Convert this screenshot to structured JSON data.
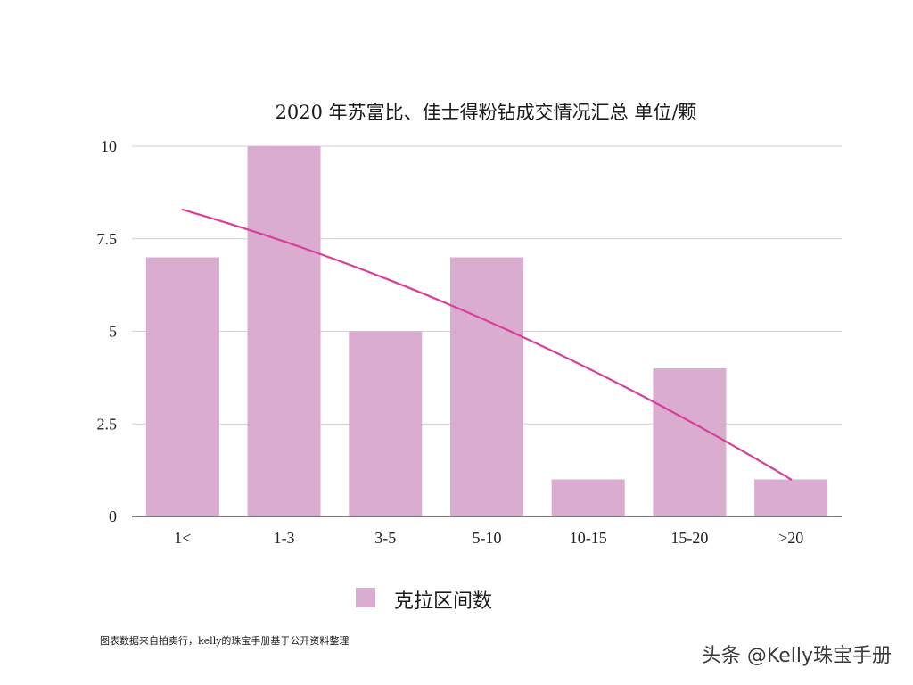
{
  "chart_data": {
    "type": "bar",
    "title": "2020 年苏富比、佳士得粉钻成交情况汇总 单位/颗",
    "categories": [
      "1<",
      "1-3",
      "3-5",
      "5-10",
      "10-15",
      "15-20",
      ">20"
    ],
    "series": [
      {
        "name": "克拉区间数",
        "values": [
          7,
          10,
          5,
          7,
          1,
          4,
          1
        ]
      }
    ],
    "trendline": {
      "type": "polynomial"
    },
    "ylim": [
      0,
      10
    ],
    "yticks": [
      0,
      2.5,
      5,
      7.5,
      10
    ],
    "ytick_labels": [
      "0",
      "2.5",
      "5",
      "7.5",
      "10"
    ],
    "grid": true,
    "legend": "bottom-center",
    "xlabel": "",
    "ylabel": "",
    "colors": {
      "bar": "#d9acd0",
      "trendline": "#d93f98",
      "grid": "#cfcfcf",
      "axis": "#333333"
    }
  },
  "footer": {
    "source_note": "图表数据来自拍卖行，kelly的珠宝手册基于公开资料整理",
    "watermark": "头条 @Kelly珠宝手册"
  }
}
